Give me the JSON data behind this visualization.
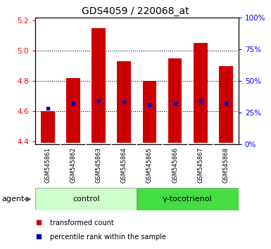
{
  "title": "GDS4059 / 220068_at",
  "samples": [
    "GSM545861",
    "GSM545862",
    "GSM545863",
    "GSM545864",
    "GSM545865",
    "GSM545866",
    "GSM545867",
    "GSM545868"
  ],
  "bar_bottoms": [
    4.39,
    4.39,
    4.39,
    4.39,
    4.39,
    4.39,
    4.39,
    4.39
  ],
  "bar_tops": [
    4.6,
    4.82,
    5.15,
    4.93,
    4.8,
    4.95,
    5.05,
    4.9
  ],
  "blue_dots": [
    4.62,
    4.65,
    4.67,
    4.66,
    4.64,
    4.65,
    4.67,
    4.65
  ],
  "ylim": [
    4.38,
    5.22
  ],
  "yticks_left": [
    4.4,
    4.6,
    4.8,
    5.0,
    5.2
  ],
  "yticks_right_pct": [
    0,
    25,
    50,
    75,
    100
  ],
  "bar_color": "#cc0000",
  "dot_color": "#0000bb",
  "control_color": "#ccffcc",
  "gtoc_color": "#44dd44",
  "gray_label_color": "#c8c8c8",
  "legend_items": [
    {
      "color": "#cc0000",
      "label": "transformed count"
    },
    {
      "color": "#0000bb",
      "label": "percentile rank within the sample"
    }
  ],
  "title_fontsize": 10,
  "tick_fontsize": 7.5,
  "sample_fontsize": 6,
  "agent_fontsize": 8,
  "legend_fontsize": 7
}
